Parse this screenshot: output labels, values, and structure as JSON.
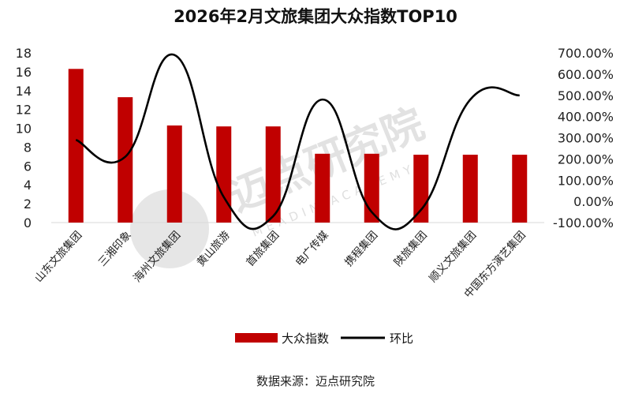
{
  "chart_data": {
    "type": "bar",
    "title": "2026年2月文旅集团大众指数TOP10",
    "categories": [
      "山东文旅集团",
      "三湘印象",
      "海州文旅集团",
      "黄山旅游",
      "首旅集团",
      "电广传媒",
      "携程集团",
      "陕旅集团",
      "顺义文旅集团",
      "中国东方演艺集团"
    ],
    "series": [
      {
        "name": "大众指数",
        "type": "bar",
        "axis": "left",
        "color": "#c00000",
        "values": [
          16.3,
          13.3,
          10.3,
          10.2,
          10.2,
          7.3,
          7.3,
          7.2,
          7.2,
          7.2
        ]
      },
      {
        "name": "环比",
        "type": "line",
        "axis": "right",
        "color": "#000000",
        "values": [
          2.9,
          2.1,
          6.9,
          0.2,
          -0.7,
          4.8,
          -0.5,
          -0.4,
          4.8,
          5.0
        ]
      }
    ],
    "y_left": {
      "min": 0,
      "max": 18,
      "step": 2,
      "ticks": [
        "0",
        "2",
        "4",
        "6",
        "8",
        "10",
        "12",
        "14",
        "16",
        "18"
      ]
    },
    "y_right": {
      "min": -1,
      "max": 7,
      "step": 1,
      "ticks": [
        "-100.00%",
        "0.00%",
        "100.00%",
        "200.00%",
        "300.00%",
        "400.00%",
        "500.00%",
        "600.00%",
        "700.00%"
      ]
    },
    "grid": false,
    "legend_position": "bottom"
  },
  "source": "数据来源：迈点研究院",
  "watermark": {
    "text": "迈点研究院",
    "subtext": "MEADIN ACADEMY"
  }
}
